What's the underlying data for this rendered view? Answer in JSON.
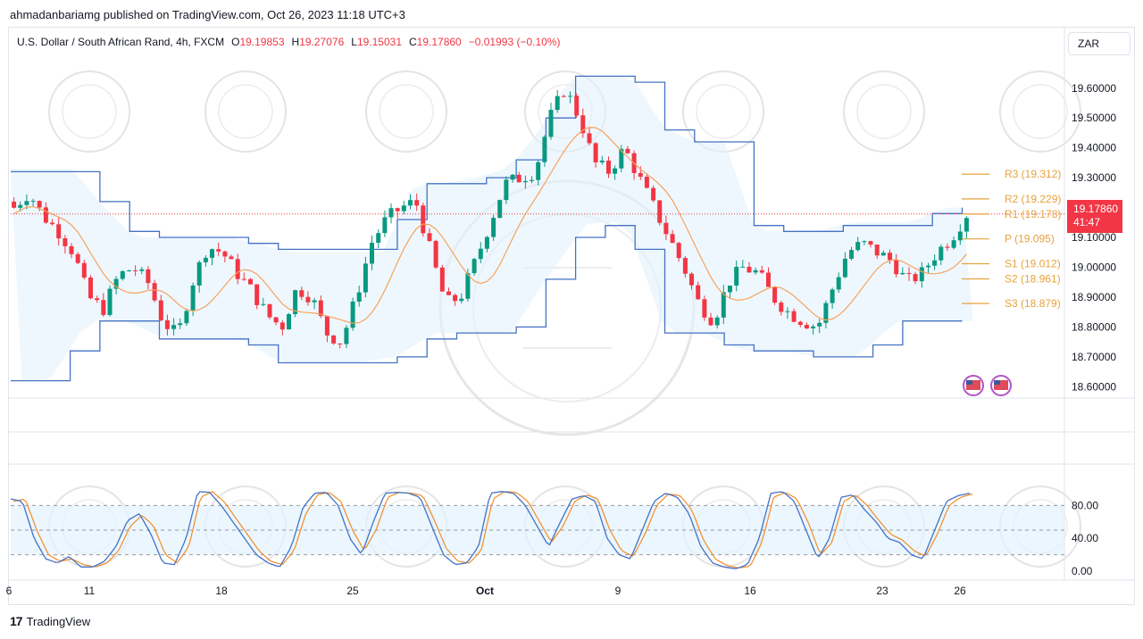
{
  "header": {
    "published": "ahmadanbariamg published on TradingView.com, Oct 26, 2023 11:18 UTC+3"
  },
  "legend": {
    "symbol": "U.S. Dollar / South African Rand, 4h, FXCM",
    "o_label": "O",
    "o_value": "19.19853",
    "h_label": "H",
    "h_value": "19.27076",
    "l_label": "L",
    "l_value": "19.15031",
    "c_label": "C",
    "c_value": "19.17860",
    "change": "−0.01993 (−0.10%)"
  },
  "currency_button": "ZAR",
  "price_tag": {
    "price": "19.17860",
    "countdown": "41:47"
  },
  "footer": {
    "brand": "TradingView"
  },
  "colors": {
    "up": "#089981",
    "down": "#f23645",
    "channel": "#4472c4",
    "channel_fill": "#e3f2fd",
    "baseline": "#f7a35c",
    "pivot": "#e6a23c",
    "stoch_k": "#4472c4",
    "stoch_d": "#f28c28"
  },
  "chart_data": [
    {
      "type": "candlestick",
      "title": "U.S. Dollar / South African Rand, 4h, FXCM",
      "ylim": [
        18.58,
        19.68
      ],
      "y_ticks": [
        "19.60000",
        "19.50000",
        "19.40000",
        "19.30000",
        "19.20000",
        "19.10000",
        "19.00000",
        "18.90000",
        "18.80000",
        "18.70000",
        "18.60000"
      ],
      "x_ticks": [
        "6",
        "11",
        "18",
        "25",
        "Oct",
        "9",
        "16",
        "23",
        "26"
      ],
      "close_anchors": [
        19.2,
        19.25,
        19.17,
        19.12,
        19.05,
        18.9,
        18.86,
        18.97,
        19.0,
        18.95,
        18.82,
        18.77,
        18.95,
        19.07,
        19.05,
        18.98,
        18.92,
        18.84,
        18.8,
        18.93,
        18.9,
        18.78,
        18.75,
        18.9,
        19.08,
        19.16,
        19.2,
        19.22,
        19.05,
        18.88,
        18.9,
        19.02,
        19.15,
        19.28,
        19.3,
        19.32,
        19.5,
        19.6,
        19.5,
        19.35,
        19.32,
        19.4,
        19.3,
        19.2,
        19.1,
        19.0,
        18.88,
        18.82,
        18.95,
        19.0,
        18.98,
        18.9,
        18.85,
        18.82,
        18.8,
        18.93,
        19.05,
        19.08,
        19.05,
        19.02,
        18.95,
        18.98,
        19.05,
        19.1,
        19.178
      ],
      "channel_upper_anchors": [
        19.33,
        19.33,
        19.33,
        19.2,
        19.1,
        19.1,
        19.1,
        19.1,
        19.08,
        19.05,
        19.05,
        19.05,
        19.05,
        19.28,
        19.28,
        19.3,
        19.33,
        19.45,
        19.64,
        19.64,
        19.64,
        19.47,
        19.42,
        19.42,
        19.12,
        19.12,
        19.12,
        19.15,
        19.15,
        19.15,
        19.2,
        19.2
      ],
      "channel_lower_anchors": [
        18.62,
        18.62,
        18.82,
        18.82,
        18.76,
        18.76,
        18.76,
        18.68,
        18.68,
        18.68,
        18.7,
        18.78,
        18.78,
        18.78,
        18.98,
        19.15,
        19.15,
        18.78,
        18.78,
        18.72,
        18.72,
        18.7,
        18.7,
        18.82,
        18.82,
        18.82
      ],
      "pivot_levels": [
        {
          "label": "R3",
          "value": 19.312,
          "text": "R3 (19.312)"
        },
        {
          "label": "R2",
          "value": 19.229,
          "text": "R2 (19.229)"
        },
        {
          "label": "R1",
          "value": 19.178,
          "text": "R1 (19.178)"
        },
        {
          "label": "P",
          "value": 19.095,
          "text": "P (19.095)"
        },
        {
          "label": "S1",
          "value": 19.012,
          "text": "S1 (19.012)"
        },
        {
          "label": "S2",
          "value": 18.961,
          "text": "S2 (18.961)"
        },
        {
          "label": "S3",
          "value": 18.879,
          "text": "S3 (18.879)"
        }
      ],
      "last_price": 19.1786
    },
    {
      "type": "line",
      "name": "stochastic",
      "ylim": [
        0,
        100
      ],
      "y_ticks": [
        "80.00",
        "40.00",
        "0.00"
      ],
      "band": [
        20,
        80
      ],
      "midline": 50,
      "k_anchors": [
        88,
        85,
        40,
        15,
        10,
        18,
        5,
        5,
        12,
        30,
        62,
        70,
        45,
        10,
        8,
        40,
        97,
        96,
        80,
        60,
        40,
        20,
        10,
        5,
        30,
        78,
        95,
        96,
        80,
        40,
        20,
        60,
        95,
        96,
        95,
        90,
        55,
        20,
        8,
        10,
        30,
        95,
        97,
        95,
        80,
        55,
        30,
        60,
        88,
        92,
        85,
        40,
        20,
        15,
        50,
        85,
        95,
        90,
        70,
        30,
        10,
        5,
        3,
        8,
        40,
        95,
        97,
        85,
        50,
        15,
        40,
        90,
        93,
        75,
        60,
        40,
        35,
        20,
        15,
        50,
        85,
        92,
        95
      ],
      "d_anchors": [
        85,
        88,
        50,
        20,
        12,
        15,
        8,
        5,
        10,
        25,
        55,
        68,
        55,
        20,
        10,
        30,
        90,
        97,
        85,
        65,
        45,
        25,
        12,
        8,
        25,
        70,
        93,
        96,
        85,
        50,
        25,
        50,
        90,
        96,
        95,
        92,
        62,
        28,
        12,
        10,
        25,
        88,
        97,
        96,
        85,
        60,
        35,
        55,
        85,
        93,
        88,
        50,
        25,
        18,
        45,
        80,
        94,
        92,
        75,
        38,
        15,
        7,
        4,
        6,
        35,
        90,
        96,
        88,
        58,
        20,
        35,
        85,
        93,
        80,
        62,
        45,
        38,
        25,
        18,
        45,
        80,
        90,
        94
      ]
    }
  ]
}
